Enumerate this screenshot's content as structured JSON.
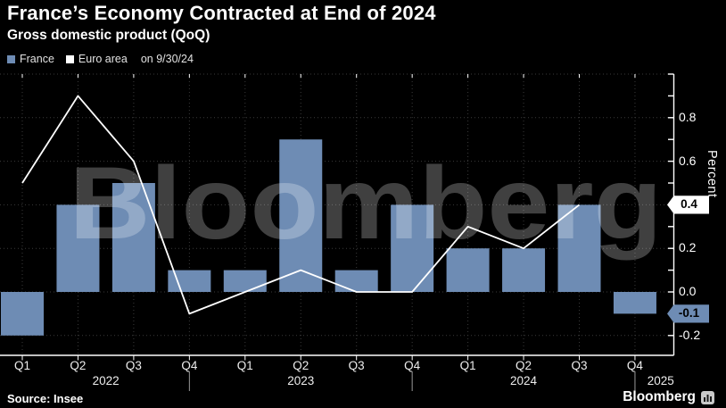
{
  "header": {
    "title": "France’s Economy Contracted at End of 2024",
    "subtitle": "Gross domestic product (QoQ)"
  },
  "legend": {
    "items": [
      {
        "label": "France",
        "color": "#6e8cb4"
      },
      {
        "label": "Euro area",
        "color": "#ffffff"
      }
    ],
    "as_of": "on 9/30/24"
  },
  "chart_data": {
    "type": "bar",
    "categories": [
      "Q1 2022",
      "Q2 2022",
      "Q3 2022",
      "Q4 2022",
      "Q1 2023",
      "Q2 2023",
      "Q3 2023",
      "Q4 2023",
      "Q1 2024",
      "Q2 2024",
      "Q3 2024",
      "Q4 2024"
    ],
    "x_tick_labels": [
      "Q1",
      "Q2",
      "Q3",
      "Q4",
      "Q1",
      "Q2",
      "Q3",
      "Q4",
      "Q1",
      "Q2",
      "Q3",
      "Q4"
    ],
    "year_labels": [
      "2022",
      "2023",
      "2024",
      "2025"
    ],
    "year_divider_after_index": [
      3,
      7,
      11
    ],
    "series": [
      {
        "name": "France",
        "type": "bar",
        "color": "#6e8cb4",
        "values": [
          -0.2,
          0.4,
          0.5,
          0.1,
          0.1,
          0.7,
          0.1,
          0.4,
          0.2,
          0.2,
          0.4,
          -0.1
        ]
      },
      {
        "name": "Euro area",
        "type": "line",
        "color": "#ffffff",
        "values": [
          0.5,
          0.9,
          0.6,
          -0.1,
          0.0,
          0.1,
          0.0,
          0.0,
          0.3,
          0.2,
          0.4,
          null
        ]
      }
    ],
    "title": "France’s Economy Contracted at End of 2024",
    "subtitle": "Gross domestic product (QoQ)",
    "xlabel": "",
    "ylabel": "Percent",
    "ylim": [
      -0.3,
      1.0
    ],
    "y_axis": {
      "side": "right",
      "labeled_ticks": [
        0.8,
        0.6,
        0.4,
        0.2,
        0.0,
        -0.2
      ],
      "labeled_tick_strings": [
        "0.8",
        "0.6",
        "0.4",
        "0.2",
        "0.0",
        "-0.2"
      ],
      "minor_tick_step": 0.1,
      "grid_values": [
        1.0,
        0.8,
        0.6,
        0.4,
        0.2,
        0.0,
        -0.2
      ]
    },
    "grid": true,
    "legend_position": "top-left"
  },
  "axis_badges": [
    {
      "series": "Euro area",
      "value": 0.4,
      "label": "0.4",
      "bg": "#ffffff",
      "text_color": "#000000"
    },
    {
      "series": "France",
      "value": -0.1,
      "label": "-0.1",
      "bg": "#6e8cb4",
      "text_color": "#000000"
    }
  ],
  "watermark": "Bloomberg",
  "footer": {
    "source": "Source: Insee",
    "brand": "Bloomberg"
  },
  "colors": {
    "background": "#000000",
    "bar": "#6e8cb4",
    "line": "#ffffff",
    "grid": "#3a3a3a",
    "axis": "#ffffff",
    "divider": "#9a9a9a"
  }
}
